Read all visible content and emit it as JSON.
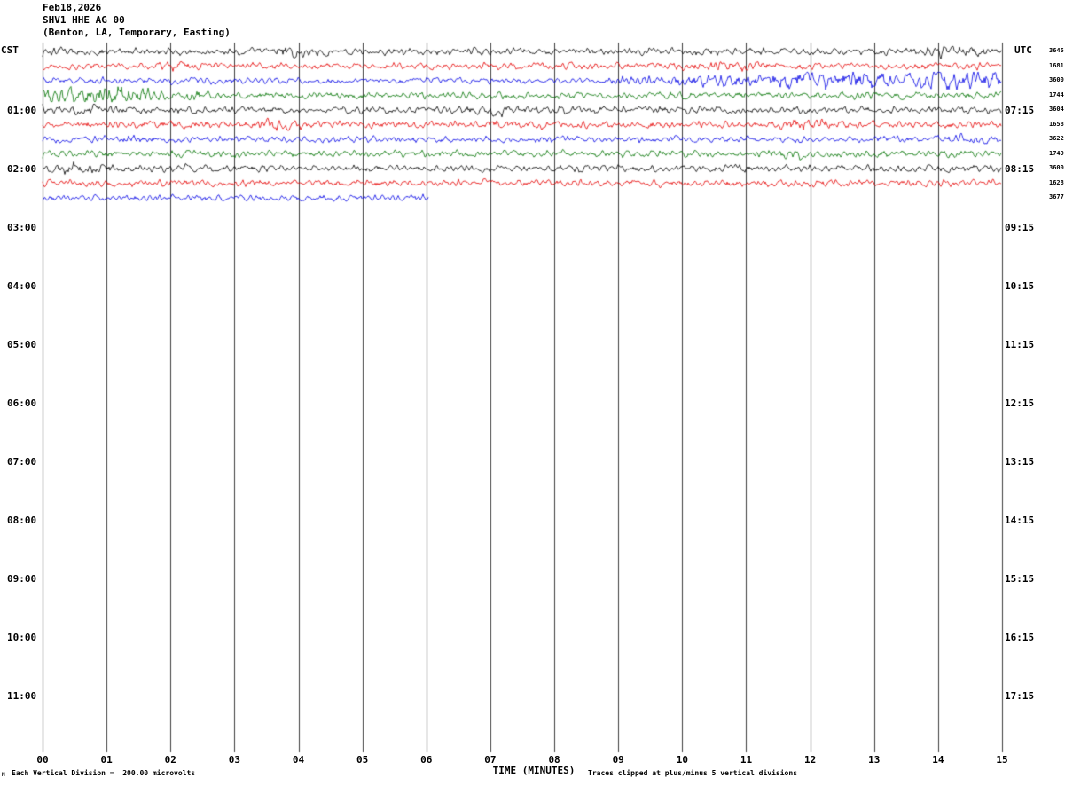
{
  "header": {
    "date": "Feb18,2026",
    "station": "SHV1 HHE AG 00",
    "location": "(Benton, LA, Temporary, Easting)"
  },
  "axes": {
    "left_label": "CST",
    "right_label": "UTC",
    "left_times": [
      "01:00",
      "02:00",
      "03:00",
      "04:00",
      "05:00",
      "06:00",
      "07:00",
      "08:00",
      "09:00",
      "10:00",
      "11:00"
    ],
    "right_times": [
      "07:15",
      "08:15",
      "09:15",
      "10:15",
      "11:15",
      "12:15",
      "13:15",
      "14:15",
      "15:15",
      "16:15",
      "17:15"
    ],
    "x_ticks": [
      "00",
      "01",
      "02",
      "03",
      "04",
      "05",
      "06",
      "07",
      "08",
      "09",
      "10",
      "11",
      "12",
      "13",
      "14",
      "15"
    ],
    "x_axis_label": "TIME (MINUTES)"
  },
  "amp_labels": [
    "3645",
    "1681",
    "3600",
    "1744",
    "3604",
    "1658",
    "3622",
    "1749",
    "3600",
    "1628",
    "3677"
  ],
  "footer": {
    "scale_glyph": "M",
    "scale_note": "Each Vertical Division =  200.00 microvolts",
    "clip_note": "Traces clipped at plus/minus 5 vertical divisions"
  },
  "chart_data": {
    "type": "line",
    "title": "Helicorder record SHV1 HHE AG 00",
    "xlabel": "TIME (MINUTES)",
    "x_range_minutes": [
      0,
      15
    ],
    "minutes_per_line": 15,
    "lines_per_hour": 4,
    "clip_divisions": 5,
    "microvolts_per_division": 200.0,
    "grid": "vertical-every-minute",
    "colors": {
      "black": "#000000",
      "red": "#e60000",
      "blue": "#0000e6",
      "green": "#007200"
    },
    "traces": [
      {
        "row": 0,
        "color": "black",
        "start_min": 0,
        "end_min": 15,
        "base_amp_div": 1.8,
        "bursts": [
          [
            0,
            0.5,
            2.5
          ],
          [
            3.8,
            4.3,
            3
          ],
          [
            13.8,
            14.6,
            3
          ]
        ],
        "seed": 101
      },
      {
        "row": 1,
        "color": "red",
        "start_min": 0,
        "end_min": 15,
        "base_amp_div": 1.8,
        "bursts": [
          [
            2.0,
            2.4,
            2.8
          ],
          [
            10.3,
            11.0,
            3
          ]
        ],
        "seed": 202
      },
      {
        "row": 2,
        "color": "blue",
        "start_min": 0,
        "end_min": 15,
        "base_amp_div": 1.6,
        "bursts": [
          [
            9,
            10,
            2.5
          ],
          [
            10,
            11.5,
            3.5
          ],
          [
            11.5,
            15,
            5
          ]
        ],
        "seed": 303
      },
      {
        "row": 3,
        "color": "green",
        "start_min": 0,
        "end_min": 15,
        "base_amp_div": 1.8,
        "bursts": [
          [
            0,
            1.6,
            5
          ],
          [
            1.6,
            2.4,
            3
          ]
        ],
        "seed": 404
      },
      {
        "row": 4,
        "color": "black",
        "start_min": 0,
        "end_min": 15,
        "base_amp_div": 1.9,
        "bursts": [
          [
            0.2,
            0.9,
            2.8
          ],
          [
            6.8,
            7.3,
            2.8
          ]
        ],
        "seed": 505
      },
      {
        "row": 5,
        "color": "red",
        "start_min": 0,
        "end_min": 15,
        "base_amp_div": 1.8,
        "bursts": [
          [
            3.3,
            3.8,
            3
          ],
          [
            7.0,
            7.6,
            2.5
          ],
          [
            11.8,
            12.3,
            3.2
          ]
        ],
        "seed": 606
      },
      {
        "row": 6,
        "color": "blue",
        "start_min": 0,
        "end_min": 15,
        "base_amp_div": 1.7,
        "bursts": [
          [
            14.2,
            14.7,
            2.5
          ]
        ],
        "seed": 707
      },
      {
        "row": 7,
        "color": "green",
        "start_min": 0,
        "end_min": 15,
        "base_amp_div": 1.8,
        "bursts": [
          [
            11.4,
            11.7,
            3
          ]
        ],
        "seed": 808
      },
      {
        "row": 8,
        "color": "black",
        "start_min": 0,
        "end_min": 15,
        "base_amp_div": 1.9,
        "bursts": [
          [
            0.3,
            0.8,
            3
          ]
        ],
        "seed": 909
      },
      {
        "row": 9,
        "color": "red",
        "start_min": 0,
        "end_min": 15,
        "base_amp_div": 1.8,
        "bursts": [],
        "seed": 1010
      },
      {
        "row": 10,
        "color": "blue",
        "start_min": 0,
        "end_min": 6.05,
        "base_amp_div": 1.7,
        "bursts": [],
        "seed": 1111
      }
    ]
  }
}
